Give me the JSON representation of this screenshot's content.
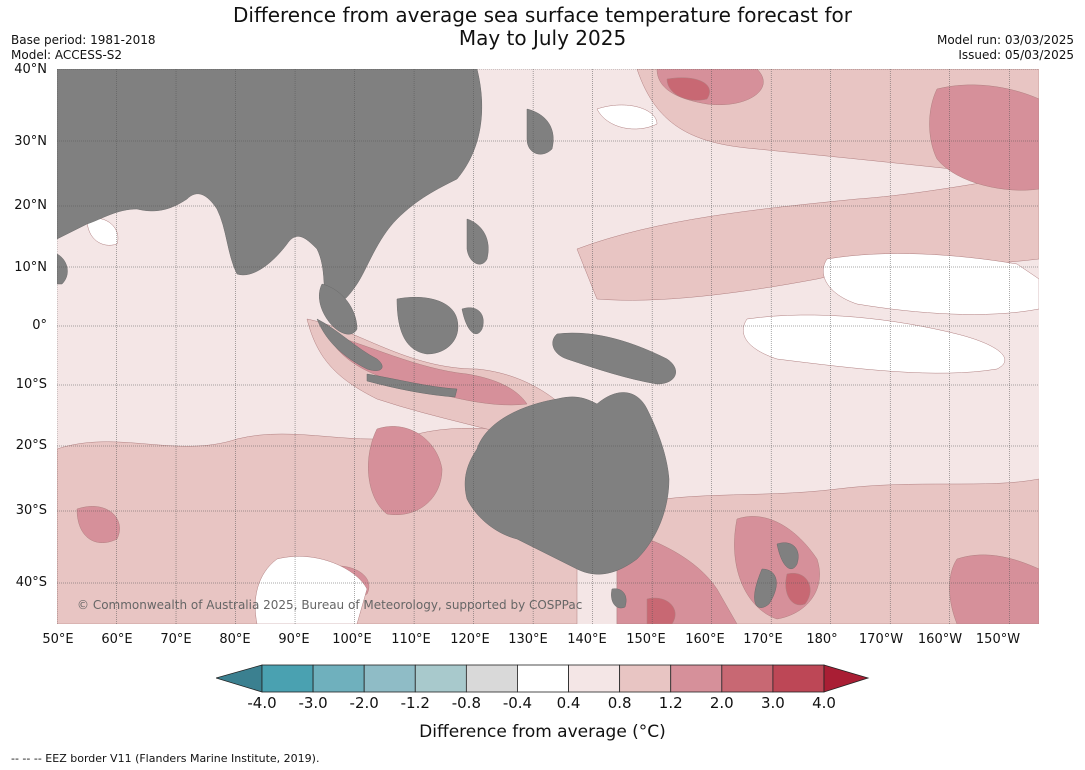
{
  "title": {
    "line1": "Difference from average sea surface temperature forecast for",
    "line2": "May to July 2025"
  },
  "meta_left": {
    "base_period": "Base period: 1981-2018",
    "model": "Model: ACCESS-S2"
  },
  "meta_right": {
    "model_run": "Model run: 03/03/2025",
    "issued": "Issued: 05/03/2025"
  },
  "lat_labels": [
    "40°N",
    "30°N",
    "20°N",
    "10°N",
    "0°",
    "10°S",
    "20°S",
    "30°S",
    "40°S"
  ],
  "lon_labels": [
    "50°E",
    "60°E",
    "70°E",
    "80°E",
    "90°E",
    "100°E",
    "110°E",
    "120°E",
    "130°E",
    "140°E",
    "150°E",
    "160°E",
    "170°E",
    "180°",
    "170°W",
    "160°W",
    "150°W"
  ],
  "copyright": "© Commonwealth of Australia 2025, Bureau of Meteorology, supported by COSPPac",
  "colorbar": {
    "ticks": [
      "-4.0",
      "-3.0",
      "-2.0",
      "-1.2",
      "-0.8",
      "-0.4",
      "0.4",
      "0.8",
      "1.2",
      "2.0",
      "3.0",
      "4.0"
    ],
    "colors": [
      "#4aa1b1",
      "#6fb0bd",
      "#8fbcc6",
      "#a8c9cc",
      "#d9d9d9",
      "#ffffff",
      "#f4e6e6",
      "#e8c5c3",
      "#d6909a",
      "#c86873",
      "#bd4756"
    ],
    "under_color": "#3b8090",
    "over_color": "#a91e34",
    "title": "Difference from average (°C)"
  },
  "footnote": "--  --  -- EEZ border V11 (Flanders Marine Institute, 2019).",
  "map_colors": {
    "land": "#808080",
    "ocean_base": "#f4e6e6",
    "grid": "#555555"
  },
  "map_extent": {
    "lon": [
      50,
      215
    ],
    "lat": [
      -46,
      40
    ]
  }
}
